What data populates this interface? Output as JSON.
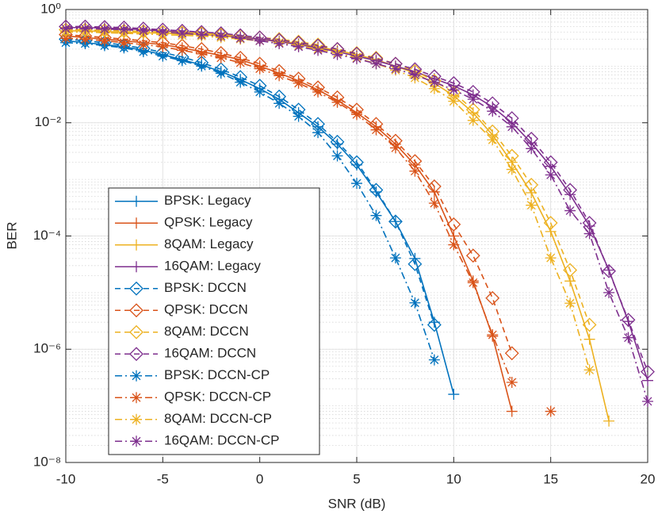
{
  "chart_data": {
    "type": "line",
    "xlabel": "SNR (dB)",
    "ylabel": "BER",
    "yscale": "log",
    "grid": true,
    "legend": "lower left",
    "x": [
      -10,
      -9,
      -8,
      -7,
      -6,
      -5,
      -4,
      -3,
      -2,
      -1,
      0,
      1,
      2,
      3,
      4,
      5,
      6,
      7,
      8,
      9,
      10,
      11,
      12,
      13,
      14,
      15,
      16,
      17,
      18,
      19,
      20
    ],
    "xlim": [
      -10,
      20
    ],
    "xticks": [
      -10,
      -5,
      0,
      5,
      10,
      15,
      20
    ],
    "ylim": [
      1e-08,
      1
    ],
    "yticks": [
      {
        "value": 1,
        "label": "10⁰"
      },
      {
        "value": 0.01,
        "label": "10⁻²"
      },
      {
        "value": 0.0001,
        "label": "10⁻⁴"
      },
      {
        "value": 1e-06,
        "label": "10⁻⁶"
      },
      {
        "value": 1e-08,
        "label": "10⁻⁸"
      }
    ],
    "series": [
      {
        "name": "BPSK: Legacy",
        "color": "#0072bd",
        "linestyle": "solid",
        "marker": "+",
        "values": [
          0.28,
          0.26,
          0.24,
          0.22,
          0.19,
          0.16,
          0.13,
          0.105,
          0.08,
          0.058,
          0.04,
          0.026,
          0.015,
          0.0085,
          0.0042,
          0.0018,
          0.0006,
          0.00018,
          4e-05,
          3e-06,
          1.6e-07,
          null,
          null,
          null,
          null,
          null,
          null,
          null,
          null,
          null,
          null
        ]
      },
      {
        "name": "QPSK: Legacy",
        "color": "#d95319",
        "linestyle": "solid",
        "marker": "+",
        "values": [
          0.34,
          0.32,
          0.3,
          0.28,
          0.26,
          0.24,
          0.21,
          0.18,
          0.155,
          0.13,
          0.1,
          0.075,
          0.055,
          0.038,
          0.025,
          0.015,
          0.0085,
          0.0042,
          0.0018,
          0.0006,
          0.0001,
          1.6e-05,
          1.7e-06,
          8e-08,
          null,
          null,
          null,
          null,
          null,
          null,
          null
        ]
      },
      {
        "name": "8QAM: Legacy",
        "color": "#edb120",
        "linestyle": "solid",
        "marker": "+",
        "values": [
          0.42,
          0.42,
          0.41,
          0.4,
          0.39,
          0.38,
          0.37,
          0.36,
          0.34,
          0.32,
          0.3,
          0.28,
          0.25,
          0.22,
          0.19,
          0.16,
          0.13,
          0.1,
          0.075,
          0.05,
          0.03,
          0.015,
          0.0061,
          0.002,
          0.00058,
          0.00012,
          1.6e-05,
          1.5e-06,
          5.4e-08,
          null,
          null
        ]
      },
      {
        "name": "16QAM: Legacy",
        "color": "#7e2f8e",
        "linestyle": "solid",
        "marker": "+",
        "values": [
          0.48,
          0.48,
          0.47,
          0.46,
          0.44,
          0.42,
          0.4,
          0.38,
          0.36,
          0.33,
          0.3,
          0.27,
          0.24,
          0.21,
          0.18,
          0.15,
          0.125,
          0.1,
          0.08,
          0.06,
          0.045,
          0.031,
          0.019,
          0.01,
          0.0044,
          0.0017,
          0.00054,
          0.00015,
          2.5e-05,
          3.1e-06,
          2.8e-07
        ]
      },
      {
        "name": "BPSK: DCCN",
        "color": "#0072bd",
        "linestyle": "dashed",
        "marker": "diamond",
        "values": [
          0.3,
          0.28,
          0.26,
          0.235,
          0.205,
          0.175,
          0.145,
          0.115,
          0.088,
          0.064,
          0.045,
          0.029,
          0.017,
          0.0095,
          0.0046,
          0.002,
          0.00065,
          0.00018,
          3.2e-05,
          2.7e-06,
          null,
          null,
          null,
          null,
          null,
          null,
          null,
          null,
          null,
          null,
          null
        ]
      },
      {
        "name": "QPSK: DCCN",
        "color": "#d95319",
        "linestyle": "dashed",
        "marker": "diamond",
        "values": [
          0.36,
          0.34,
          0.32,
          0.3,
          0.28,
          0.26,
          0.23,
          0.2,
          0.17,
          0.14,
          0.11,
          0.082,
          0.06,
          0.042,
          0.028,
          0.017,
          0.0095,
          0.0048,
          0.0021,
          0.00075,
          0.00016,
          4.5e-05,
          8e-06,
          8.5e-07,
          null,
          null,
          null,
          null,
          null,
          null,
          null
        ]
      },
      {
        "name": "8QAM: DCCN",
        "color": "#edb120",
        "linestyle": "dashed",
        "marker": "diamond",
        "values": [
          0.44,
          0.44,
          0.43,
          0.42,
          0.41,
          0.4,
          0.39,
          0.38,
          0.36,
          0.34,
          0.32,
          0.3,
          0.27,
          0.24,
          0.2,
          0.17,
          0.14,
          0.11,
          0.082,
          0.055,
          0.034,
          0.017,
          0.007,
          0.0026,
          0.0008,
          0.00017,
          2.5e-05,
          2.7e-06,
          null,
          null,
          null
        ]
      },
      {
        "name": "16QAM: DCCN",
        "color": "#7e2f8e",
        "linestyle": "dashed",
        "marker": "diamond",
        "values": [
          0.5,
          0.5,
          0.49,
          0.48,
          0.46,
          0.44,
          0.42,
          0.4,
          0.38,
          0.35,
          0.32,
          0.29,
          0.26,
          0.23,
          0.2,
          0.165,
          0.135,
          0.11,
          0.088,
          0.066,
          0.05,
          0.035,
          0.022,
          0.012,
          0.0052,
          0.002,
          0.00065,
          0.00017,
          2.4e-05,
          3.3e-06,
          4e-07
        ]
      },
      {
        "name": "BPSK: DCCN-CP",
        "color": "#0072bd",
        "linestyle": "dashdot",
        "marker": "*",
        "values": [
          0.26,
          0.25,
          0.23,
          0.21,
          0.18,
          0.15,
          0.125,
          0.1,
          0.075,
          0.052,
          0.035,
          0.022,
          0.013,
          0.0067,
          0.0026,
          0.00085,
          0.00023,
          4.1e-05,
          6.6e-06,
          6.5e-07,
          null,
          null,
          null,
          null,
          null,
          null,
          null,
          null,
          null,
          null,
          null
        ]
      },
      {
        "name": "QPSK: DCCN-CP",
        "color": "#d95319",
        "linestyle": "dashdot",
        "marker": "*",
        "values": [
          0.31,
          0.3,
          0.28,
          0.26,
          0.24,
          0.22,
          0.19,
          0.165,
          0.14,
          0.115,
          0.09,
          0.068,
          0.05,
          0.035,
          0.023,
          0.014,
          0.0075,
          0.0036,
          0.0014,
          0.00038,
          7e-05,
          1.5e-05,
          1.8e-06,
          2.6e-07,
          null,
          8e-08,
          null,
          null,
          null,
          null,
          null
        ]
      },
      {
        "name": "8QAM: DCCN-CP",
        "color": "#edb120",
        "linestyle": "dashdot",
        "marker": "*",
        "values": [
          0.4,
          0.4,
          0.39,
          0.38,
          0.37,
          0.36,
          0.35,
          0.34,
          0.32,
          0.3,
          0.28,
          0.26,
          0.23,
          0.2,
          0.17,
          0.14,
          0.11,
          0.085,
          0.062,
          0.04,
          0.024,
          0.011,
          0.005,
          0.0015,
          0.00035,
          4.1e-05,
          6.5e-06,
          4.3e-07,
          null,
          null,
          null
        ]
      },
      {
        "name": "16QAM: DCCN-CP",
        "color": "#7e2f8e",
        "linestyle": "dashdot",
        "marker": "*",
        "values": [
          0.46,
          0.46,
          0.45,
          0.44,
          0.42,
          0.4,
          0.38,
          0.36,
          0.34,
          0.31,
          0.28,
          0.25,
          0.22,
          0.19,
          0.16,
          0.135,
          0.11,
          0.09,
          0.07,
          0.052,
          0.038,
          0.026,
          0.016,
          0.0085,
          0.0035,
          0.0012,
          0.00028,
          0.00011,
          1e-05,
          1.6e-06,
          1.2e-07
        ]
      }
    ]
  }
}
